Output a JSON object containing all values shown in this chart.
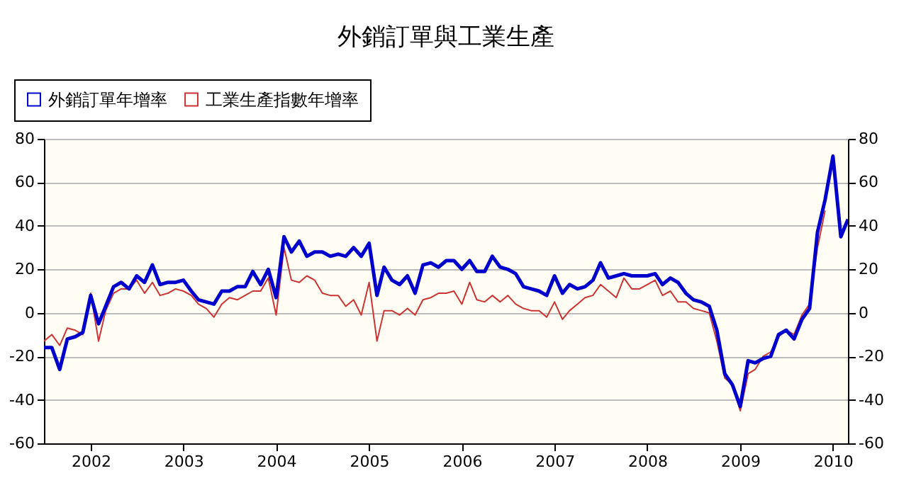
{
  "chart_data": {
    "type": "line",
    "title": "外銷訂單與工業生產",
    "x": [
      "2001-07",
      "2001-08",
      "2001-09",
      "2001-10",
      "2001-11",
      "2001-12",
      "2002-01",
      "2002-02",
      "2002-03",
      "2002-04",
      "2002-05",
      "2002-06",
      "2002-07",
      "2002-08",
      "2002-09",
      "2002-10",
      "2002-11",
      "2002-12",
      "2003-01",
      "2003-02",
      "2003-03",
      "2003-04",
      "2003-05",
      "2003-06",
      "2003-07",
      "2003-08",
      "2003-09",
      "2003-10",
      "2003-11",
      "2003-12",
      "2004-01",
      "2004-02",
      "2004-03",
      "2004-04",
      "2004-05",
      "2004-06",
      "2004-07",
      "2004-08",
      "2004-09",
      "2004-10",
      "2004-11",
      "2004-12",
      "2005-01",
      "2005-02",
      "2005-03",
      "2005-04",
      "2005-05",
      "2005-06",
      "2005-07",
      "2005-08",
      "2005-09",
      "2005-10",
      "2005-11",
      "2005-12",
      "2006-01",
      "2006-02",
      "2006-03",
      "2006-04",
      "2006-05",
      "2006-06",
      "2006-07",
      "2006-08",
      "2006-09",
      "2006-10",
      "2006-11",
      "2006-12",
      "2007-01",
      "2007-02",
      "2007-03",
      "2007-04",
      "2007-05",
      "2007-06",
      "2007-07",
      "2007-08",
      "2007-09",
      "2007-10",
      "2007-11",
      "2007-12",
      "2008-01",
      "2008-02",
      "2008-03",
      "2008-04",
      "2008-05",
      "2008-06",
      "2008-07",
      "2008-08",
      "2008-09",
      "2008-10",
      "2008-11",
      "2008-12",
      "2009-01",
      "2009-02",
      "2009-03",
      "2009-04",
      "2009-05",
      "2009-06",
      "2009-07",
      "2009-08",
      "2009-09",
      "2009-10",
      "2009-11",
      "2009-12",
      "2010-01",
      "2010-02",
      "2010-03"
    ],
    "series": [
      {
        "name": "外銷訂單年增率",
        "color": "#0000cc",
        "values": [
          -16,
          -16,
          -26,
          -12,
          -11,
          -9,
          8,
          -5,
          3,
          12,
          14,
          11,
          17,
          14,
          22,
          13,
          14,
          14,
          15,
          10,
          6,
          5,
          4,
          10,
          10,
          12,
          12,
          19,
          13,
          20,
          7,
          35,
          28,
          33,
          26,
          28,
          28,
          26,
          27,
          26,
          30,
          26,
          32,
          8,
          21,
          15,
          13,
          17,
          9,
          22,
          23,
          21,
          24,
          24,
          20,
          24,
          19,
          19,
          26,
          21,
          20,
          18,
          12,
          11,
          10,
          8,
          17,
          9,
          13,
          11,
          12,
          15,
          23,
          16,
          17,
          18,
          17,
          17,
          17,
          18,
          13,
          16,
          14,
          9,
          6,
          5,
          3,
          -8,
          -28,
          -33,
          -43,
          -22,
          -23,
          -21,
          -20,
          -10,
          -8,
          -12,
          -3,
          2,
          37,
          52,
          72,
          35,
          43
        ]
      },
      {
        "name": "工業生產指數年增率",
        "color": "#cc3333",
        "values": [
          -13,
          -10,
          -15,
          -7,
          -8,
          -10,
          9,
          -13,
          1,
          9,
          11,
          11,
          15,
          9,
          14,
          8,
          9,
          11,
          10,
          8,
          4,
          2,
          -2,
          4,
          7,
          6,
          8,
          10,
          10,
          16,
          -1,
          30,
          15,
          14,
          17,
          15,
          9,
          8,
          8,
          3,
          6,
          -1,
          14,
          -13,
          1,
          1,
          -1,
          2,
          -1,
          6,
          7,
          9,
          9,
          10,
          4,
          14,
          6,
          5,
          8,
          5,
          8,
          4,
          2,
          1,
          1,
          -2,
          5,
          -3,
          1,
          4,
          7,
          8,
          13,
          10,
          7,
          16,
          11,
          11,
          13,
          15,
          8,
          10,
          5,
          5,
          2,
          1,
          0,
          -13,
          -30,
          -33,
          -45,
          -28,
          -26,
          -20,
          -18,
          -11,
          -8,
          -10,
          -1,
          4,
          30,
          47,
          null,
          null,
          null
        ]
      }
    ],
    "xlim": [
      "2001-07",
      "2010-03"
    ],
    "xticks": [
      "2002",
      "2003",
      "2004",
      "2005",
      "2006",
      "2007",
      "2008",
      "2009",
      "2010"
    ],
    "ylim": [
      -60,
      80
    ],
    "yticks": [
      -60,
      -40,
      -20,
      0,
      20,
      40,
      60,
      80
    ],
    "y2lim": [
      -60,
      80
    ],
    "y2ticks": [
      -60,
      -40,
      -20,
      0,
      20,
      40,
      60,
      80
    ],
    "grid": "y",
    "legend": "top left"
  }
}
